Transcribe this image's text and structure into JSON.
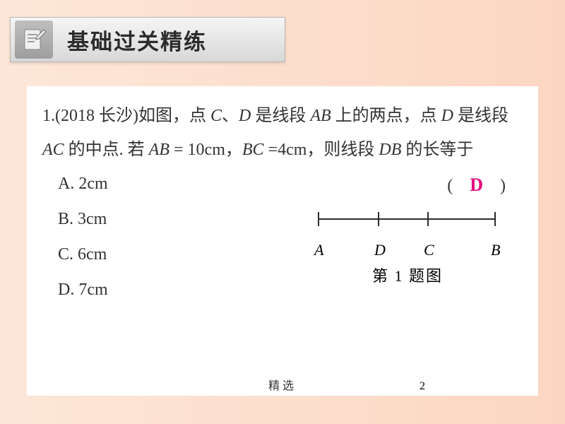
{
  "header": {
    "title": "基础过关精练"
  },
  "question": {
    "number": "1.",
    "source": "(2018 长沙)",
    "body_part1": "如图，点 ",
    "var_C": "C",
    "sep1": "、",
    "var_D": "D",
    "body_part2": " 是线段 ",
    "var_AB": "AB",
    "body_part3": " 上的两点，点 ",
    "var_D2": "D",
    "body_part4": " 是线段 ",
    "var_AC": "AC",
    "body_part5": " 的中点. 若 ",
    "var_AB2": "AB",
    "eq1": " = 10cm，",
    "var_BC": "BC",
    "eq2": " =4cm，则线段 ",
    "var_DB": "DB",
    "body_part6": " 的长等于",
    "paren_l": "(　",
    "answer": "D",
    "paren_r": "　)"
  },
  "options": {
    "A": "A. 2cm",
    "B": "B. 3cm",
    "C": "C. 6cm",
    "D": "D. 7cm"
  },
  "figure": {
    "labels": {
      "A": "A",
      "D": "D",
      "C": "C",
      "B": "B"
    },
    "positions": {
      "A": 0,
      "D": 85,
      "C": 155,
      "B": 250
    },
    "caption": "第 1 题图",
    "line_color": "#2c2c2c",
    "tick_height": 10,
    "line_width": 2
  },
  "footer": {
    "note": "精选",
    "page": "2"
  },
  "colors": {
    "bg_start": "#fde7d8",
    "bg_end": "#fcd6c2",
    "content_bg": "#ffffff",
    "answer_color": "#e4007f"
  }
}
